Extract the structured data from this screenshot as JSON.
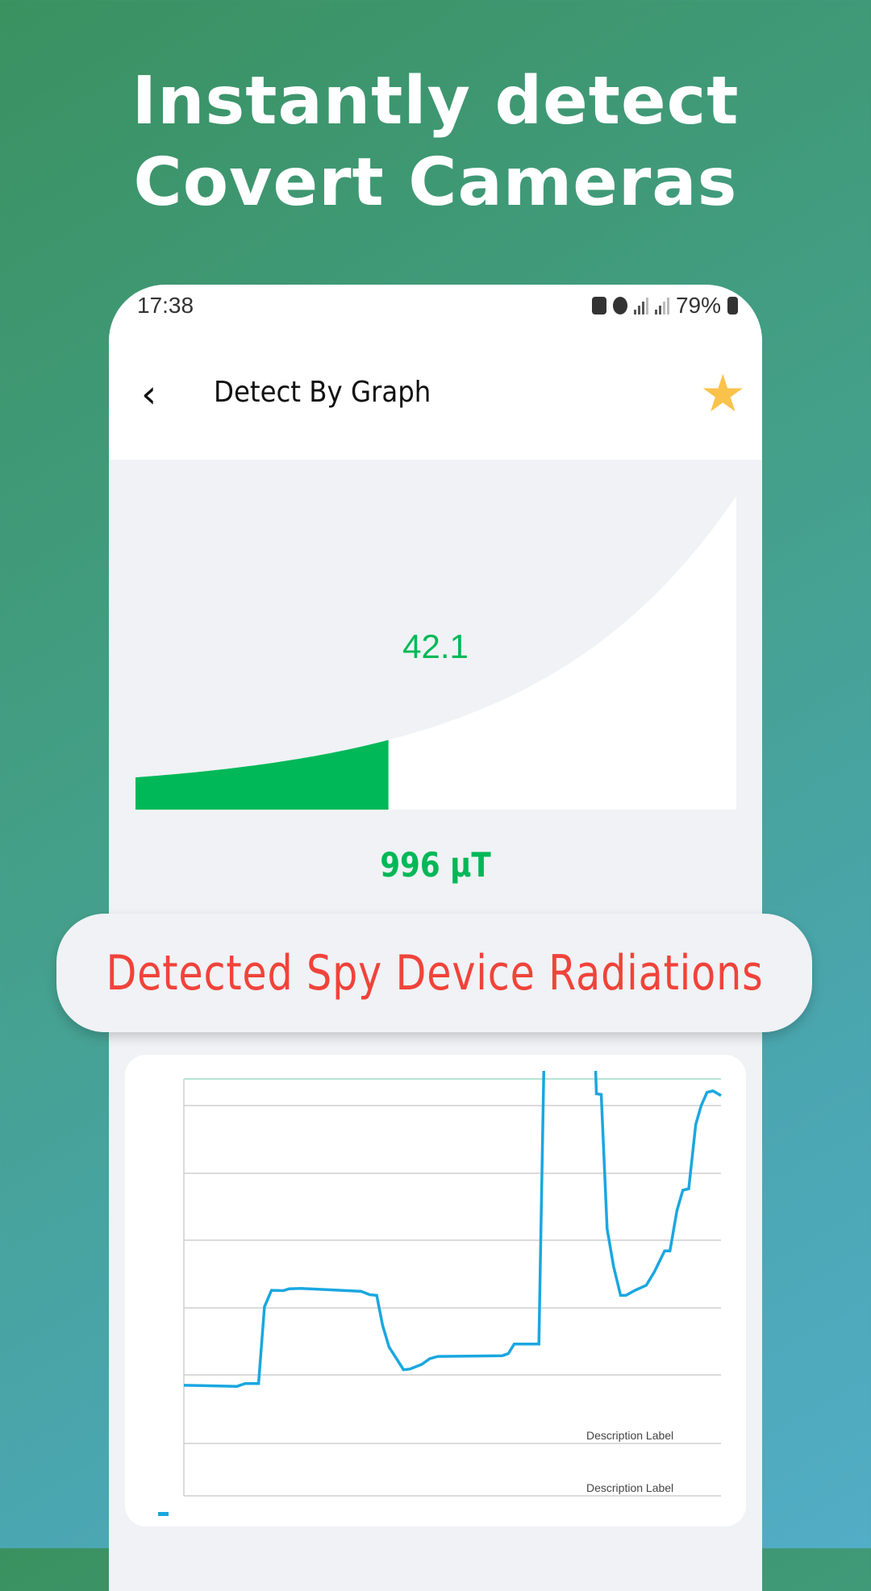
{
  "promo": {
    "line1": "Instantly detect",
    "line2": "Covert Cameras"
  },
  "status_bar": {
    "time": "17:38",
    "battery": "79%",
    "icons": [
      "recycle-icon",
      "alarm-icon",
      "signal-icon",
      "signal-icon",
      "battery-icon"
    ]
  },
  "toolbar": {
    "title": "Detect By Graph",
    "back_icon": "chevron-left-icon",
    "favorite_icon": "star-icon"
  },
  "gauge": {
    "value": "42.1",
    "fraction": 0.421,
    "fill_color": "#00b858"
  },
  "reading": {
    "text": "996 µT"
  },
  "banner": {
    "text": "Detected Spy Device Radiations",
    "color": "#f0433a"
  },
  "chart_data": {
    "type": "line",
    "description_label": "Description Label",
    "line_color": "#1aa7e0",
    "ylim": [
      0,
      100
    ],
    "grid": true,
    "x": [
      0,
      9.9,
      11.4,
      13.9,
      15.0,
      16.3,
      18.5,
      19.6,
      21.9,
      33.0,
      34.6,
      35.9,
      37.0,
      38.2,
      40.9,
      42.1,
      44.3,
      45.8,
      47.3,
      59.3,
      60.4,
      61.5,
      66.1,
      67.1,
      76.5,
      76.8,
      77.7,
      78.8,
      80.0,
      81.3,
      82.3,
      83.9,
      86.1,
      87.6,
      89.5,
      90.5,
      91.8,
      92.9,
      94.0,
      95.3,
      96.3,
      97.4,
      98.5,
      100
    ],
    "y": [
      15.2,
      14.9,
      15.7,
      15.7,
      36.9,
      41.5,
      41.4,
      41.9,
      42.0,
      41.2,
      40.3,
      40.1,
      31.8,
      25.8,
      19.5,
      19.7,
      21.0,
      22.6,
      23.2,
      23.4,
      24.0,
      26.6,
      26.6,
      110,
      110,
      95.9,
      95.7,
      58.5,
      48.1,
      40.1,
      40.1,
      41.4,
      42.9,
      46.6,
      52.4,
      52.4,
      63.6,
      69.2,
      69.6,
      87.4,
      92.6,
      96.3,
      96.7,
      95.4
    ]
  }
}
